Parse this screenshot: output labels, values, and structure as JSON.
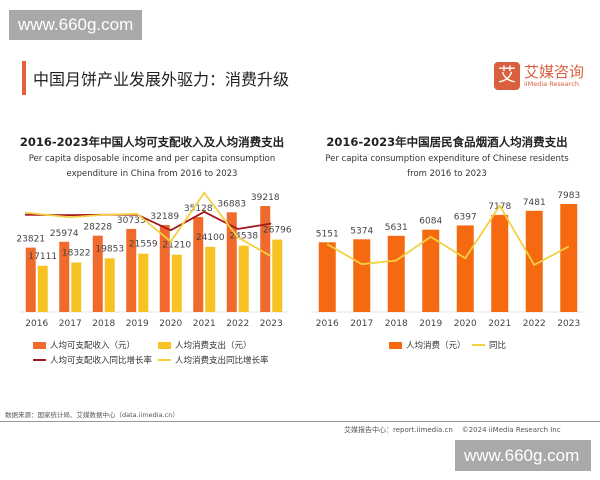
{
  "watermark": "www.660g.com",
  "header": {
    "title": "中国月饼产业发展外驱力：消费升级",
    "logo_mark": "艾",
    "logo_cn": "艾媒咨询",
    "logo_en": "iiMedia Research"
  },
  "colors": {
    "orange": "#ef6a2c",
    "gold": "#f6c323",
    "darkred": "#a3161c",
    "yellow_line": "#f2d040",
    "right_bar": "#f56a10"
  },
  "chart_data": [
    {
      "type": "bar",
      "title": "2016-2023年中国人均可支配收入及人均消费支出",
      "subtitle_line1": "Per capita disposable income and per capita consumption",
      "subtitle_line2": "expenditure in China from 2016 to 2023",
      "categories": [
        "2016",
        "2017",
        "2018",
        "2019",
        "2020",
        "2021",
        "2022",
        "2023"
      ],
      "series": [
        {
          "name": "人均可支配收入（元）",
          "type": "bar",
          "values": [
            23821,
            25974,
            28228,
            30733,
            32189,
            35128,
            36883,
            39218
          ]
        },
        {
          "name": "人均消费支出（元）",
          "type": "bar",
          "values": [
            17111,
            18322,
            19853,
            21559,
            21210,
            24100,
            24538,
            26796
          ]
        },
        {
          "name": "人均可支配收入同比增长率",
          "type": "line",
          "values": [
            8.4,
            8.3,
            8.4,
            8.4,
            4.7,
            9.1,
            5.0,
            6.3
          ]
        },
        {
          "name": "人均消费支出同比增长率",
          "type": "line",
          "values": [
            8.9,
            7.8,
            8.4,
            8.6,
            2.0,
            13.6,
            3.0,
            -1.5
          ]
        }
      ],
      "grid": false,
      "legend": "bottom"
    },
    {
      "type": "bar",
      "title": "2016-2023年中国居民食品烟酒人均消费支出",
      "subtitle_line1": "Per capita consumption expenditure of Chinese residents",
      "subtitle_line2": "from 2016 to 2023",
      "categories": [
        "2016",
        "2017",
        "2018",
        "2019",
        "2020",
        "2021",
        "2022",
        "2023"
      ],
      "series": [
        {
          "name": "人均消费（元）",
          "type": "bar",
          "values": [
            5151,
            5374,
            5631,
            6084,
            6397,
            7178,
            7481,
            7983
          ]
        },
        {
          "name": "同比",
          "type": "line",
          "values": [
            7.0,
            4.3,
            4.8,
            8.0,
            5.1,
            12.2,
            4.2,
            6.7
          ]
        }
      ],
      "grid": false,
      "legend": "bottom"
    }
  ],
  "footer": {
    "source": "数据来源：国家统计局、艾媒数据中心（data.iimedia.cn）",
    "report": "艾媒报告中心：report.iimedia.cn",
    "copyright": "©2024  iiMedia Research Inc"
  }
}
